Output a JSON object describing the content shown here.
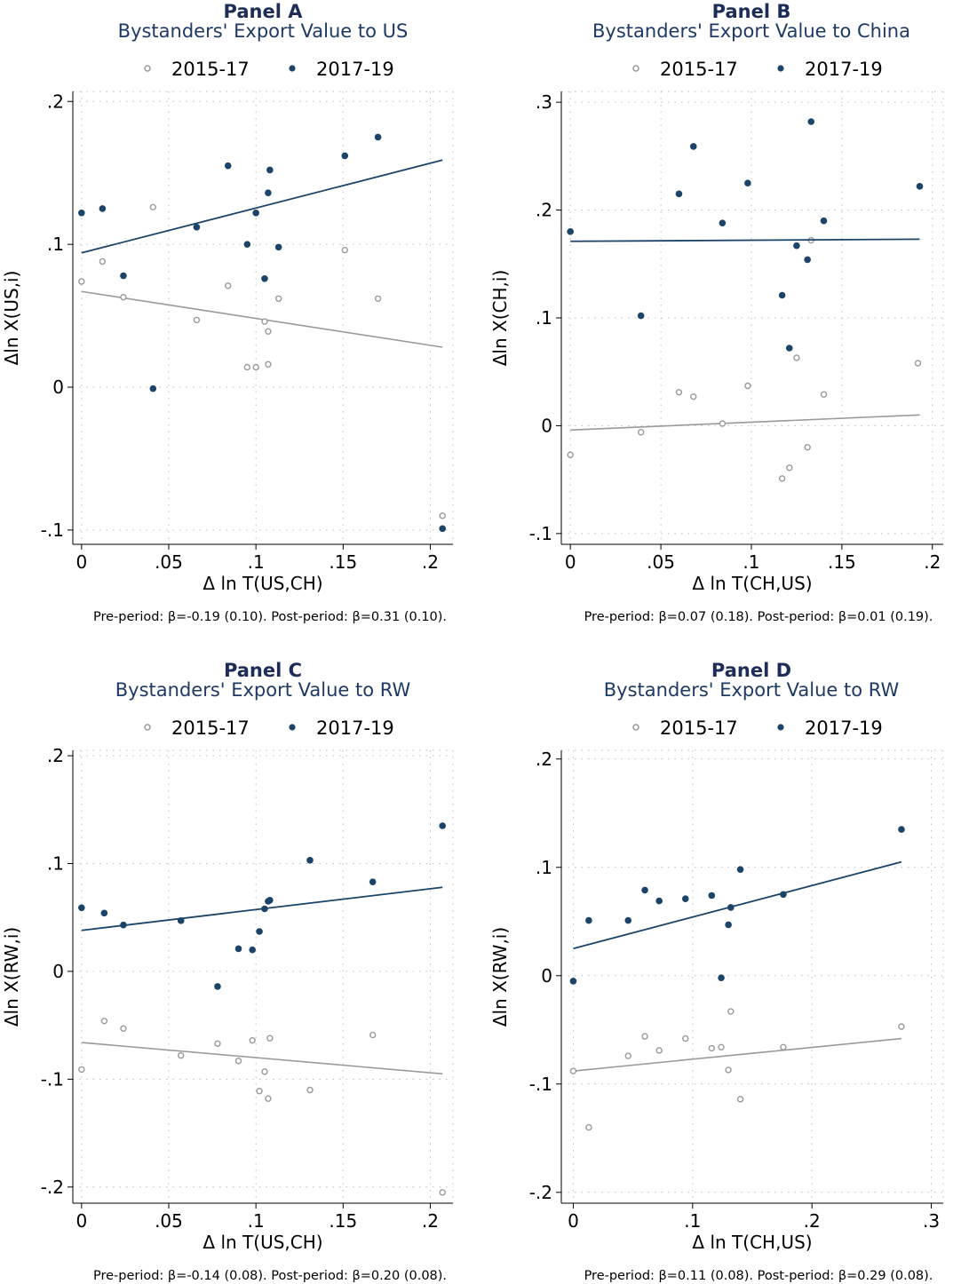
{
  "colors": {
    "pre": "#9a9a9a",
    "post": "#1b4468",
    "title": "#1e2d57",
    "grid": "#bcbcbc"
  },
  "legend": {
    "pre": "2015-17",
    "post": "2017-19"
  },
  "chart_data": [
    {
      "type": "scatter",
      "panel": "Panel A",
      "title": "Bystanders' Export Value to US",
      "xlabel": "Δ ln T(US,CH)",
      "ylabel": "Δln X(US,i)",
      "xlim": [
        -0.005,
        0.213
      ],
      "ylim": [
        -0.11,
        0.207
      ],
      "xticks": [
        0,
        0.05,
        0.1,
        0.15,
        0.2
      ],
      "xticklabels": [
        "0",
        ".05",
        ".1",
        ".15",
        ".2"
      ],
      "yticks": [
        -0.1,
        0,
        0.1,
        0.2
      ],
      "yticklabels": [
        "-.1",
        "0",
        ".1",
        ".2"
      ],
      "grid": true,
      "legend_position": "top",
      "note": "Pre-period: β=-0.19 (0.10). Post-period: β=0.31 (0.10).",
      "series": [
        {
          "name": "2015-17",
          "x": [
            0,
            0.012,
            0.024,
            0.041,
            0.066,
            0.084,
            0.095,
            0.1,
            0.105,
            0.107,
            0.107,
            0.113,
            0.151,
            0.17,
            0.207
          ],
          "y": [
            0.074,
            0.088,
            0.063,
            0.126,
            0.047,
            0.071,
            0.014,
            0.014,
            0.046,
            0.016,
            0.039,
            0.062,
            0.096,
            0.062,
            -0.09
          ],
          "fit": {
            "x": [
              0,
              0.207
            ],
            "y": [
              0.067,
              0.028
            ]
          }
        },
        {
          "name": "2017-19",
          "x": [
            0,
            0.012,
            0.024,
            0.041,
            0.066,
            0.084,
            0.095,
            0.1,
            0.105,
            0.107,
            0.108,
            0.113,
            0.151,
            0.17,
            0.207
          ],
          "y": [
            0.122,
            0.125,
            0.078,
            -0.001,
            0.112,
            0.155,
            0.1,
            0.122,
            0.076,
            0.136,
            0.152,
            0.098,
            0.162,
            0.175,
            -0.099
          ],
          "fit": {
            "x": [
              0,
              0.207
            ],
            "y": [
              0.094,
              0.159
            ]
          }
        }
      ]
    },
    {
      "type": "scatter",
      "panel": "Panel B",
      "title": "Bystanders' Export Value to China",
      "xlabel": "Δ ln T(CH,US)",
      "ylabel": "Δln X(CH,i)",
      "xlim": [
        -0.005,
        0.206
      ],
      "ylim": [
        -0.11,
        0.31
      ],
      "xticks": [
        0,
        0.05,
        0.1,
        0.15,
        0.2
      ],
      "xticklabels": [
        "0",
        ".05",
        ".1",
        ".15",
        ".2"
      ],
      "yticks": [
        -0.1,
        0,
        0.1,
        0.2,
        0.3
      ],
      "yticklabels": [
        "-.1",
        "0",
        ".1",
        ".2",
        ".3"
      ],
      "grid": true,
      "legend_position": "top",
      "note": "Pre-period: β=0.07 (0.18). Post-period: β=0.01 (0.19).",
      "series": [
        {
          "name": "2015-17",
          "x": [
            0,
            0.039,
            0.06,
            0.068,
            0.084,
            0.098,
            0.117,
            0.121,
            0.125,
            0.131,
            0.133,
            0.14,
            0.192
          ],
          "y": [
            -0.027,
            -0.006,
            0.031,
            0.027,
            0.002,
            0.037,
            -0.049,
            -0.039,
            0.063,
            -0.02,
            0.172,
            0.029,
            0.058
          ],
          "fit": {
            "x": [
              0,
              0.193
            ],
            "y": [
              -0.004,
              0.01
            ]
          }
        },
        {
          "name": "2017-19",
          "x": [
            0,
            0.039,
            0.06,
            0.068,
            0.084,
            0.098,
            0.117,
            0.121,
            0.125,
            0.131,
            0.133,
            0.14,
            0.193
          ],
          "y": [
            0.18,
            0.102,
            0.215,
            0.259,
            0.188,
            0.225,
            0.121,
            0.072,
            0.167,
            0.154,
            0.282,
            0.19,
            0.222
          ],
          "fit": {
            "x": [
              0,
              0.193
            ],
            "y": [
              0.171,
              0.173
            ]
          }
        }
      ]
    },
    {
      "type": "scatter",
      "panel": "Panel C",
      "title": "Bystanders' Export Value to RW",
      "xlabel": "Δ ln T(US,CH)",
      "ylabel": "Δln X(RW,i)",
      "xlim": [
        -0.005,
        0.213
      ],
      "ylim": [
        -0.215,
        0.205
      ],
      "xticks": [
        0,
        0.05,
        0.1,
        0.15,
        0.2
      ],
      "xticklabels": [
        "0",
        ".05",
        ".1",
        ".15",
        ".2"
      ],
      "yticks": [
        -0.2,
        -0.1,
        0,
        0.1,
        0.2
      ],
      "yticklabels": [
        "-.2",
        "-.1",
        "0",
        ".1",
        ".2"
      ],
      "grid": true,
      "legend_position": "top",
      "note": "Pre-period: β=-0.14 (0.08). Post-period: β=0.20 (0.08).",
      "series": [
        {
          "name": "2015-17",
          "x": [
            0,
            0.013,
            0.024,
            0.057,
            0.078,
            0.09,
            0.098,
            0.102,
            0.105,
            0.107,
            0.108,
            0.131,
            0.167,
            0.207
          ],
          "y": [
            -0.091,
            -0.046,
            -0.053,
            -0.078,
            -0.067,
            -0.083,
            -0.064,
            -0.111,
            -0.093,
            -0.118,
            -0.062,
            -0.11,
            -0.059,
            -0.205
          ],
          "fit": {
            "x": [
              0,
              0.207
            ],
            "y": [
              -0.066,
              -0.095
            ]
          }
        },
        {
          "name": "2017-19",
          "x": [
            0,
            0.013,
            0.024,
            0.057,
            0.078,
            0.09,
            0.098,
            0.102,
            0.105,
            0.107,
            0.108,
            0.131,
            0.167,
            0.207
          ],
          "y": [
            0.059,
            0.054,
            0.043,
            0.047,
            -0.014,
            0.021,
            0.02,
            0.037,
            0.058,
            0.065,
            0.066,
            0.103,
            0.083,
            0.135
          ],
          "fit": {
            "x": [
              0,
              0.207
            ],
            "y": [
              0.038,
              0.078
            ]
          }
        }
      ]
    },
    {
      "type": "scatter",
      "panel": "Panel D",
      "title": "Bystanders' Export Value to RW",
      "xlabel": "Δ ln T(CH,US)",
      "ylabel": "Δln X(RW,i)",
      "xlim": [
        -0.01,
        0.31
      ],
      "ylim": [
        -0.21,
        0.208
      ],
      "xticks": [
        0,
        0.1,
        0.2,
        0.3
      ],
      "xticklabels": [
        "0",
        ".1",
        ".2",
        ".3"
      ],
      "yticks": [
        -0.2,
        -0.1,
        0,
        0.1,
        0.2
      ],
      "yticklabels": [
        "-.2",
        "-.1",
        "0",
        ".1",
        ".2"
      ],
      "grid": true,
      "legend_position": "top",
      "note": "Pre-period: β=0.11 (0.08). Post-period: β=0.29 (0.08).",
      "series": [
        {
          "name": "2015-17",
          "x": [
            0,
            0.013,
            0.046,
            0.06,
            0.072,
            0.094,
            0.116,
            0.124,
            0.13,
            0.132,
            0.14,
            0.176,
            0.275
          ],
          "y": [
            -0.088,
            -0.14,
            -0.074,
            -0.056,
            -0.069,
            -0.058,
            -0.067,
            -0.066,
            -0.087,
            -0.033,
            -0.114,
            -0.066,
            -0.047
          ],
          "fit": {
            "x": [
              0,
              0.275
            ],
            "y": [
              -0.088,
              -0.058
            ]
          }
        },
        {
          "name": "2017-19",
          "x": [
            0,
            0.013,
            0.046,
            0.06,
            0.072,
            0.094,
            0.116,
            0.124,
            0.13,
            0.132,
            0.14,
            0.176,
            0.275
          ],
          "y": [
            -0.005,
            0.051,
            0.051,
            0.079,
            0.069,
            0.071,
            0.074,
            -0.002,
            0.047,
            0.063,
            0.098,
            0.075,
            0.135
          ],
          "fit": {
            "x": [
              0,
              0.275
            ],
            "y": [
              0.025,
              0.105
            ]
          }
        }
      ]
    }
  ]
}
